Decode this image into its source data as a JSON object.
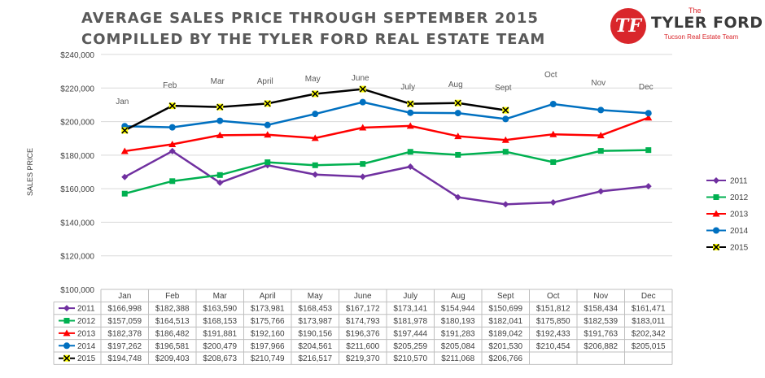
{
  "title_line_1": "AVERAGE SALES PRICE THROUGH SEPTEMBER 2015",
  "title_line_2": "COMPILLED BY THE TYLER FORD REAL ESTATE TEAM",
  "logo": {
    "the": "The",
    "name": "TYLER FORD",
    "tagline": "Tucson Real Estate Team"
  },
  "chart_data": {
    "type": "line",
    "ylabel": "SALES PRICE",
    "ylim": [
      100000,
      240000
    ],
    "yticks": [
      100000,
      120000,
      140000,
      160000,
      180000,
      200000,
      220000,
      240000
    ],
    "ytick_labels": [
      "$100,000",
      "$120,000",
      "$140,000",
      "$160,000",
      "$180,000",
      "$200,000",
      "$220,000",
      "$240,000"
    ],
    "categories": [
      "Jan",
      "Feb",
      "Mar",
      "April",
      "May",
      "June",
      "July",
      "Aug",
      "Sept",
      "Oct",
      "Nov",
      "Dec"
    ],
    "grid": true,
    "legend_position": "right",
    "series": [
      {
        "name": "2011",
        "color": "#7030a0",
        "marker": "diamond",
        "values": [
          166998,
          182388,
          163590,
          173981,
          168453,
          167172,
          173141,
          154944,
          150699,
          151812,
          158434,
          161471
        ],
        "labels": [
          "$166,998",
          "$182,388",
          "$163,590",
          "$173,981",
          "$168,453",
          "$167,172",
          "$173,141",
          "$154,944",
          "$150,699",
          "$151,812",
          "$158,434",
          "$161,471"
        ]
      },
      {
        "name": "2012",
        "color": "#00b050",
        "marker": "square",
        "values": [
          157059,
          164513,
          168153,
          175766,
          173987,
          174793,
          181978,
          180193,
          182041,
          175850,
          182539,
          183011
        ],
        "labels": [
          "$157,059",
          "$164,513",
          "$168,153",
          "$175,766",
          "$173,987",
          "$174,793",
          "$181,978",
          "$180,193",
          "$182,041",
          "$175,850",
          "$182,539",
          "$183,011"
        ]
      },
      {
        "name": "2013",
        "color": "#ff0000",
        "marker": "triangle",
        "values": [
          182378,
          186482,
          191881,
          192160,
          190156,
          196376,
          197444,
          191283,
          189042,
          192433,
          191763,
          202342
        ],
        "labels": [
          "$182,378",
          "$186,482",
          "$191,881",
          "$192,160",
          "$190,156",
          "$196,376",
          "$197,444",
          "$191,283",
          "$189,042",
          "$192,433",
          "$191,763",
          "$202,342"
        ]
      },
      {
        "name": "2014",
        "color": "#0070c0",
        "marker": "circle",
        "values": [
          197262,
          196581,
          200479,
          197966,
          204561,
          211600,
          205259,
          205084,
          201530,
          210454,
          206882,
          205015
        ],
        "labels": [
          "$197,262",
          "$196,581",
          "$200,479",
          "$197,966",
          "$204,561",
          "$211,600",
          "$205,259",
          "$205,084",
          "$201,530",
          "$210,454",
          "$206,882",
          "$205,015"
        ]
      },
      {
        "name": "2015",
        "color": "#000000",
        "marker": "x-yellow",
        "values": [
          194748,
          209403,
          208673,
          210749,
          216517,
          219370,
          210570,
          211068,
          206766,
          null,
          null,
          null
        ],
        "labels": [
          "$194,748",
          "$209,403",
          "$208,673",
          "$210,749",
          "$216,517",
          "$219,370",
          "$210,570",
          "$211,068",
          "$206,766",
          "",
          "",
          ""
        ]
      }
    ],
    "annotations": [
      "Jan",
      "Feb",
      "Mar",
      "April",
      "May",
      "June",
      "July",
      "Aug",
      "Sept",
      "Oct",
      "Nov",
      "Dec"
    ]
  }
}
